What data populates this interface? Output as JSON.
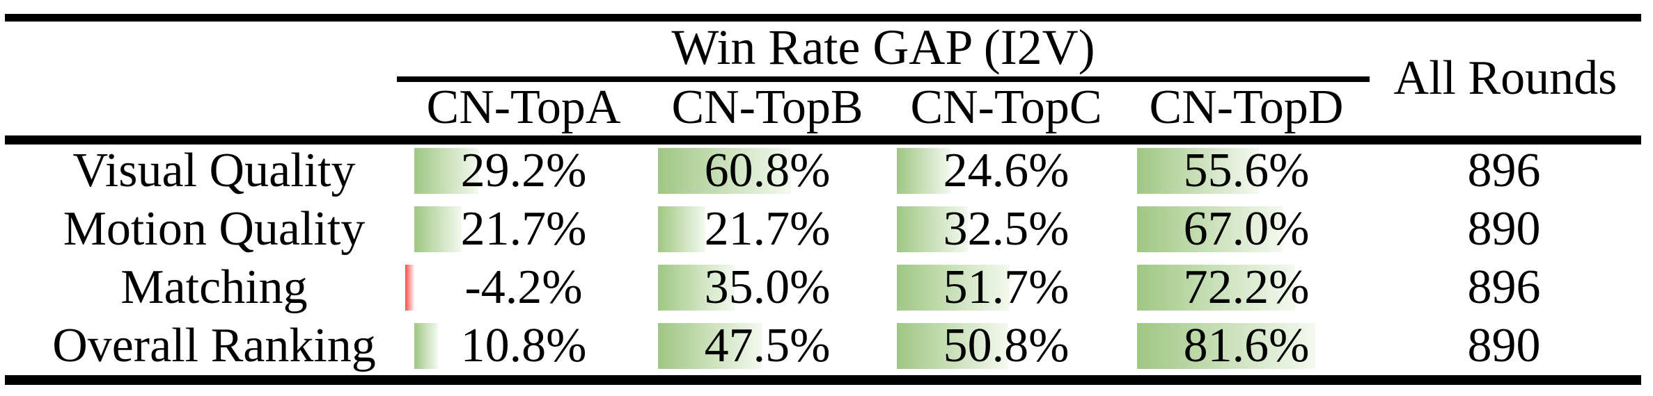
{
  "table": {
    "header": {
      "group_title": "Win Rate GAP (I2V)",
      "columns": [
        "CN-TopA",
        "CN-TopB",
        "CN-TopC",
        "CN-TopD"
      ],
      "all_rounds_label": "All Rounds"
    },
    "rows": [
      {
        "label": "Visual Quality",
        "cells": [
          {
            "display": "29.2%",
            "value": 29.2
          },
          {
            "display": "60.8%",
            "value": 60.8
          },
          {
            "display": "24.6%",
            "value": 24.6
          },
          {
            "display": "55.6%",
            "value": 55.6
          }
        ],
        "rounds": "896"
      },
      {
        "label": "Motion Quality",
        "cells": [
          {
            "display": "21.7%",
            "value": 21.7
          },
          {
            "display": "21.7%",
            "value": 21.7
          },
          {
            "display": "32.5%",
            "value": 32.5
          },
          {
            "display": "67.0%",
            "value": 67.0
          }
        ],
        "rounds": "890"
      },
      {
        "label": "Matching",
        "cells": [
          {
            "display": "-4.2%",
            "value": -4.2
          },
          {
            "display": "35.0%",
            "value": 35.0
          },
          {
            "display": "51.7%",
            "value": 51.7
          },
          {
            "display": "72.2%",
            "value": 72.2
          }
        ],
        "rounds": "896"
      },
      {
        "label": "Overall Ranking",
        "cells": [
          {
            "display": "10.8%",
            "value": 10.8
          },
          {
            "display": "47.5%",
            "value": 47.5
          },
          {
            "display": "50.8%",
            "value": 50.8
          },
          {
            "display": "81.6%",
            "value": 81.6
          }
        ],
        "rounds": "890"
      }
    ],
    "colors": {
      "bar_positive_start": "#9fc783",
      "bar_positive_end": "#f4f9ef",
      "bar_negative_start": "#ff4a4a",
      "bar_negative_end": "#fff4f4",
      "text": "#000000",
      "rule": "#000000"
    }
  },
  "chart_data": {
    "type": "table",
    "title": "Win Rate GAP (I2V)",
    "columns": [
      "CN-TopA",
      "CN-TopB",
      "CN-TopC",
      "CN-TopD",
      "All Rounds"
    ],
    "row_labels": [
      "Visual Quality",
      "Motion Quality",
      "Matching",
      "Overall Ranking"
    ],
    "values_percent": [
      [
        29.2,
        60.8,
        24.6,
        55.6
      ],
      [
        21.7,
        21.7,
        32.5,
        67.0
      ],
      [
        -4.2,
        35.0,
        51.7,
        72.2
      ],
      [
        10.8,
        47.5,
        50.8,
        81.6
      ]
    ],
    "all_rounds": [
      896,
      890,
      896,
      890
    ],
    "bar_scale": "data bars anchored at cell left, width proportional to percent, green gradient for positive, red for negative"
  }
}
